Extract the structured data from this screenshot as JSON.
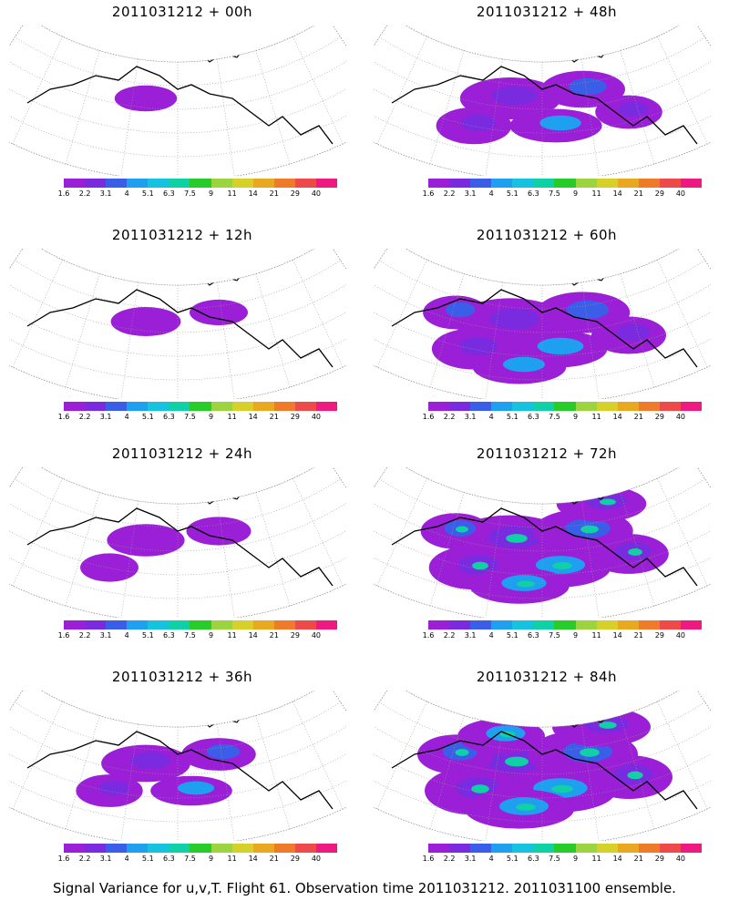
{
  "legend": {
    "colors": [
      "#9b1fd6",
      "#7b2bdf",
      "#3b5ee8",
      "#1f9ff0",
      "#16c3df",
      "#10d0a6",
      "#28cc2a",
      "#9bd43e",
      "#d7d028",
      "#e8a81f",
      "#ef7a2a",
      "#ee4a4a",
      "#ee1a82"
    ],
    "labels": [
      "1.6",
      "2.2",
      "3.1",
      "4",
      "5.1",
      "6.3",
      "7.5",
      "9",
      "11",
      "14",
      "21",
      "29",
      "40"
    ]
  },
  "panels": [
    {
      "title": "2011031212 + 00h",
      "spread": 0.1
    },
    {
      "title": "2011031212 + 48h",
      "spread": 0.6
    },
    {
      "title": "2011031212 + 12h",
      "spread": 0.2
    },
    {
      "title": "2011031212 + 60h",
      "spread": 0.75
    },
    {
      "title": "2011031212 + 24h",
      "spread": 0.3
    },
    {
      "title": "2011031212 + 72h",
      "spread": 0.85
    },
    {
      "title": "2011031212 + 36h",
      "spread": 0.45
    },
    {
      "title": "2011031212 + 84h",
      "spread": 1.0
    }
  ],
  "footer": "Signal Variance for u,v,T. Flight 61. Observation time 2011031212. 2011031100 ensemble."
}
